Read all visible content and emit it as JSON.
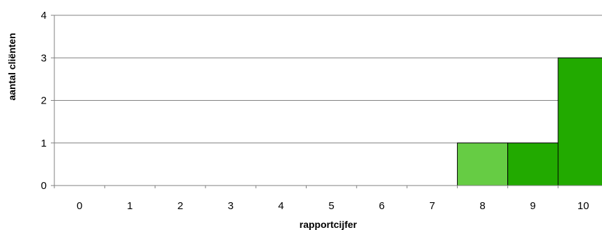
{
  "chart_data": {
    "type": "bar",
    "title": "",
    "xlabel": "rapportcijfer",
    "ylabel": "aantal cliënten",
    "categories": [
      "0",
      "1",
      "2",
      "3",
      "4",
      "5",
      "6",
      "7",
      "8",
      "9",
      "10"
    ],
    "values": [
      0,
      0,
      0,
      0,
      0,
      0,
      0,
      0,
      1,
      1,
      3
    ],
    "bar_colors": [
      "#66cc44",
      "#66cc44",
      "#66cc44",
      "#66cc44",
      "#66cc44",
      "#66cc44",
      "#66cc44",
      "#66cc44",
      "#66cc44",
      "#22aa00",
      "#22aa00"
    ],
    "ylim": [
      0,
      4
    ],
    "yticks": [
      0,
      1,
      2,
      3,
      4
    ],
    "grid": true,
    "legend": "none",
    "gridline_color": "#808080",
    "bar_border_color": "#000000"
  }
}
